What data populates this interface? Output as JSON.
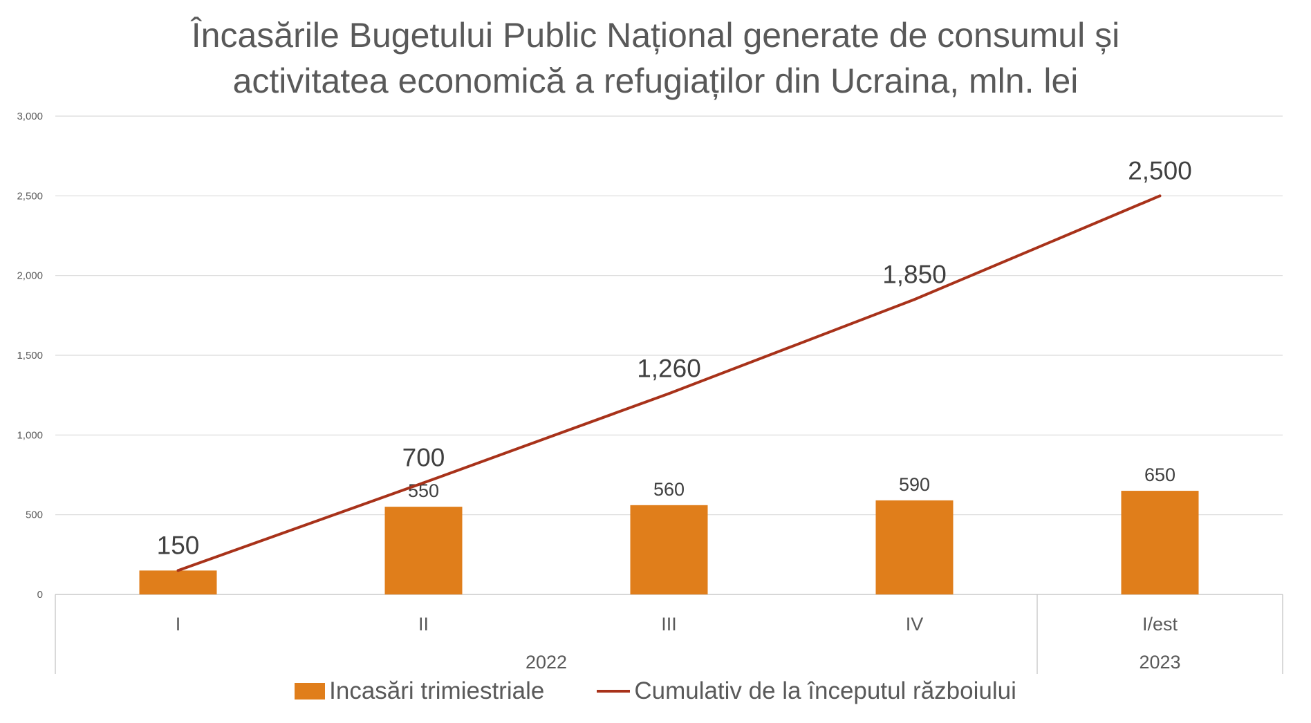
{
  "title_lines": [
    "Încasările Bugetului Public Național generate de consumul și",
    "activitatea economică a refugiaților din Ucraina, mln. lei"
  ],
  "colors": {
    "bar": "#E07E1B",
    "line": "#A8321A",
    "grid": "#D9D9D9",
    "axis": "#BFBFBF"
  },
  "legend": {
    "bar_label": "Incasări trimiestriale",
    "line_label": "Cumulativ de la începutul războiului"
  },
  "chart_data": {
    "type": "bar",
    "title": "Încasările Bugetului Public Național generate de consumul și activitatea economică a refugiaților din Ucraina, mln. lei",
    "categories": [
      "I",
      "II",
      "III",
      "IV",
      "I/est"
    ],
    "category_groups": [
      {
        "label": "2022",
        "categories": [
          "I",
          "II",
          "III",
          "IV"
        ]
      },
      {
        "label": "2023",
        "categories": [
          "I/est"
        ]
      }
    ],
    "series": [
      {
        "name": "Incasări trimiestriale",
        "type": "bar",
        "values": [
          150,
          550,
          560,
          590,
          650
        ],
        "labels": [
          "",
          "550",
          "560",
          "590",
          "650"
        ]
      },
      {
        "name": "Cumulativ de la începutul războiului",
        "type": "line",
        "values": [
          150,
          700,
          1260,
          1850,
          2500
        ],
        "labels": [
          "150",
          "700",
          "1,260",
          "1,850",
          "2,500"
        ]
      }
    ],
    "ylim": [
      0,
      3000
    ],
    "yticks": [
      0,
      500,
      1000,
      1500,
      2000,
      2500,
      3000
    ],
    "ytick_labels": [
      "0",
      "500",
      "1,000",
      "1,500",
      "2,000",
      "2,500",
      "3,000"
    ],
    "grid": true,
    "legend_position": "bottom"
  }
}
